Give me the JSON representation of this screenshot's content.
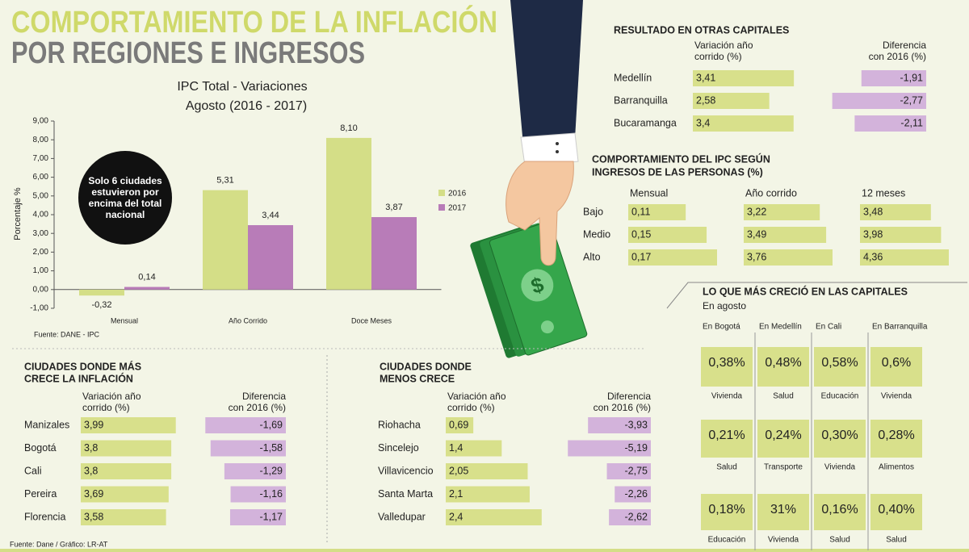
{
  "header": {
    "title_line1": "COMPORTAMIENTO DE LA INFLACIÓN",
    "title_line2": "POR REGIONES E INGRESOS"
  },
  "chart_data": {
    "type": "bar",
    "title": "IPC Total    - Variaciones",
    "subtitle": "Agosto (2016    - 2017)",
    "y_label": "Porcentaje %",
    "categories": [
      "Mensual",
      "Año Corrido",
      "Doce Meses"
    ],
    "series": [
      {
        "name": "2016",
        "color": "#d4de87",
        "values": [
          -0.32,
          5.31,
          8.1
        ],
        "value_labels": [
          "-0,32",
          "5,31",
          "8,10"
        ]
      },
      {
        "name": "2017",
        "color": "#b87cb8",
        "values": [
          0.14,
          3.44,
          3.87
        ],
        "value_labels": [
          "0,14",
          "3,44",
          "3,87"
        ]
      }
    ],
    "ylim": [
      -1,
      9
    ],
    "yticks": [
      {
        "value": -1,
        "label": "-1,00"
      },
      {
        "value": 0,
        "label": "0,00"
      },
      {
        "value": 1,
        "label": "1,00"
      },
      {
        "value": 2,
        "label": "2,00"
      },
      {
        "value": 3,
        "label": "3,00"
      },
      {
        "value": 4,
        "label": "4,00"
      },
      {
        "value": 5,
        "label": "5,00"
      },
      {
        "value": 6,
        "label": "6,00"
      },
      {
        "value": 7,
        "label": "7,00"
      },
      {
        "value": 8,
        "label": "8,00"
      },
      {
        "value": 9,
        "label": "9,00"
      }
    ],
    "annotation_lines": [
      "Solo 6 ciudades",
      "estuvieron por",
      "encima del total",
      "nacional"
    ],
    "source": "Fuente: DANE    - IPC"
  },
  "otras_capitales": {
    "title_lines": [
      "RESULTADO EN OTRAS CAPITALES"
    ],
    "header_var": [
      "Variación año",
      "corrido (%)"
    ],
    "header_diff": [
      "Diferencia",
      "con 2016 (%)"
    ],
    "rows": [
      "Medellín",
      "Barranquilla",
      "Bucaramanga"
    ],
    "var": {
      "values": [
        3.41,
        2.58,
        3.4
      ],
      "value_labels": [
        "3,41",
        "2,58",
        "3,4"
      ]
    },
    "diff": {
      "values": [
        -1.91,
        -2.77,
        -2.11
      ],
      "value_labels": [
        "-1,91",
        "-2,77",
        "-2,11"
      ]
    }
  },
  "ingresos": {
    "title_lines": [
      "COMPORTAMIENTO DEL IPC SEGÚN",
      "INGRESOS DE LAS PERSONAS (%)"
    ],
    "rows": [
      "Bajo",
      "Medio",
      "Alto"
    ],
    "columns": [
      {
        "name": "Mensual",
        "values": [
          0.11,
          0.15,
          0.17
        ],
        "value_labels": [
          "0,11",
          "0,15",
          "0,17"
        ]
      },
      {
        "name": "Año corrido",
        "values": [
          3.22,
          3.49,
          3.76
        ],
        "value_labels": [
          "3,22",
          "3,49",
          "3,76"
        ]
      },
      {
        "name": "12 meses",
        "values": [
          3.48,
          3.98,
          4.36
        ],
        "value_labels": [
          "3,48",
          "3,98",
          "4,36"
        ]
      }
    ]
  },
  "mas_crece": {
    "title_lines": [
      "CIUDADES DONDE MÁS",
      "CRECE LA INFLACIÓN"
    ],
    "header_var": [
      "Variación año",
      "corrido (%)"
    ],
    "header_diff": [
      "Diferencia",
      "con 2016 (%)"
    ],
    "rows": [
      "Manizales",
      "Bogotá",
      "Cali",
      "Pereira",
      "Florencia"
    ],
    "var": {
      "values": [
        3.99,
        3.8,
        3.8,
        3.69,
        3.58
      ],
      "value_labels": [
        "3,99",
        "3,8",
        "3,8",
        "3,69",
        "3,58"
      ]
    },
    "diff": {
      "values": [
        -1.69,
        -1.58,
        -1.29,
        -1.16,
        -1.17
      ],
      "value_labels": [
        "-1,69",
        "-1,58",
        "-1,29",
        "-1,16",
        "-1,17"
      ]
    }
  },
  "menos_crece": {
    "title_lines": [
      "CIUDADES DONDE",
      "MENOS CRECE"
    ],
    "header_var": [
      "Variación año",
      "corrido (%)"
    ],
    "header_diff": [
      "Diferencia",
      "con 2016 (%)"
    ],
    "rows": [
      "Riohacha",
      "Sincelejo",
      "Villavicencio",
      "Santa Marta",
      "Valledupar"
    ],
    "var": {
      "values": [
        0.69,
        1.4,
        2.05,
        2.1,
        2.4
      ],
      "value_labels": [
        "0,69",
        "1,4",
        "2,05",
        "2,1",
        "2,4"
      ]
    },
    "diff": {
      "values": [
        -3.93,
        -5.19,
        -2.75,
        -2.26,
        -2.62
      ],
      "value_labels": [
        "-3,93",
        "-5,19",
        "-2,75",
        "-2,26",
        "-2,62"
      ]
    }
  },
  "crecimiento": {
    "title": "LO QUE MÁS CRECIÓ EN LAS CAPITALES",
    "subtitle": "En agosto",
    "cities": [
      {
        "name": "En Bogotá",
        "items": [
          {
            "value": "0,38%",
            "label": "Vivienda"
          },
          {
            "value": "0,21%",
            "label": "Salud"
          },
          {
            "value": "0,18%",
            "label": "Educación"
          }
        ]
      },
      {
        "name": "En Medellín",
        "items": [
          {
            "value": "0,48%",
            "label": "Salud"
          },
          {
            "value": "0,24%",
            "label": "Transporte"
          },
          {
            "value": "31%",
            "label": "Vivienda"
          }
        ]
      },
      {
        "name": "En Cali",
        "items": [
          {
            "value": "0,58%",
            "label": "Educación"
          },
          {
            "value": "0,30%",
            "label": "Vivienda"
          },
          {
            "value": "0,16%",
            "label": "Salud"
          }
        ]
      },
      {
        "name": "En Barranquilla",
        "items": [
          {
            "value": "0,6%",
            "label": "Vivienda"
          },
          {
            "value": "0,28%",
            "label": "Alimentos"
          },
          {
            "value": "0,40%",
            "label": "Salud"
          }
        ]
      }
    ]
  },
  "footer": {
    "source": "Fuente: Dane / Gráfico: LR-AT"
  }
}
